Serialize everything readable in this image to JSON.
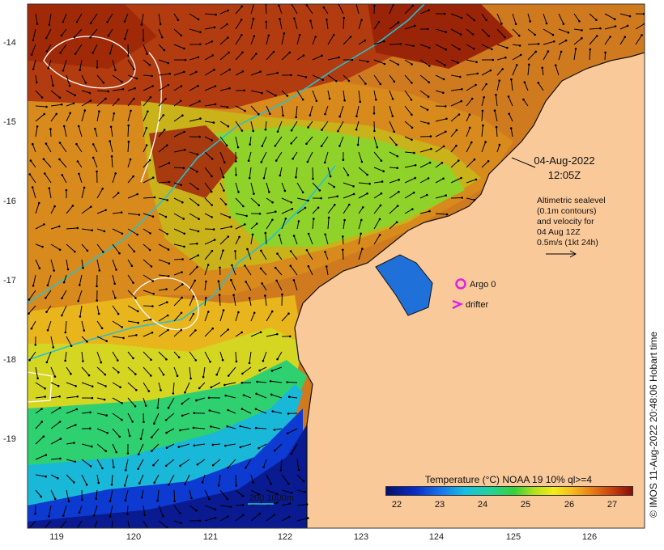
{
  "map": {
    "x_ticks": [
      "119",
      "120",
      "121",
      "122",
      "123",
      "124",
      "125",
      "126"
    ],
    "y_ticks": [
      "-14",
      "-15",
      "-16",
      "-17",
      "-18",
      "-19"
    ],
    "timestamp": {
      "date": "04-Aug-2022",
      "time": "12:05Z"
    },
    "altimetry_note": [
      "Altimetric sealevel",
      "(0.1m contours)",
      "and velocity for",
      "04 Aug 12Z",
      "0.5m/s (1kt 24h)"
    ],
    "legend": {
      "argo": "Argo 0",
      "drifter": "drifter"
    },
    "scalebar": {
      "label_200": "200",
      "label_1000": "1000m"
    },
    "colorbar": {
      "title": "Temperature (°C) NOAA 19 10% ql>=4",
      "ticks": [
        "22",
        "23",
        "24",
        "25",
        "26",
        "27"
      ]
    },
    "credit": "© IMOS 11-Aug-2022 20:48:06 Hobart time",
    "colors": {
      "land": "#f9c99a",
      "bathymetry_contour": "#25c1d4",
      "sealevel_contour": "#ffffff",
      "argo_marker": "#e020e0",
      "drifter_marker": "#e020e0",
      "velocity_arrow": "#000000"
    }
  }
}
